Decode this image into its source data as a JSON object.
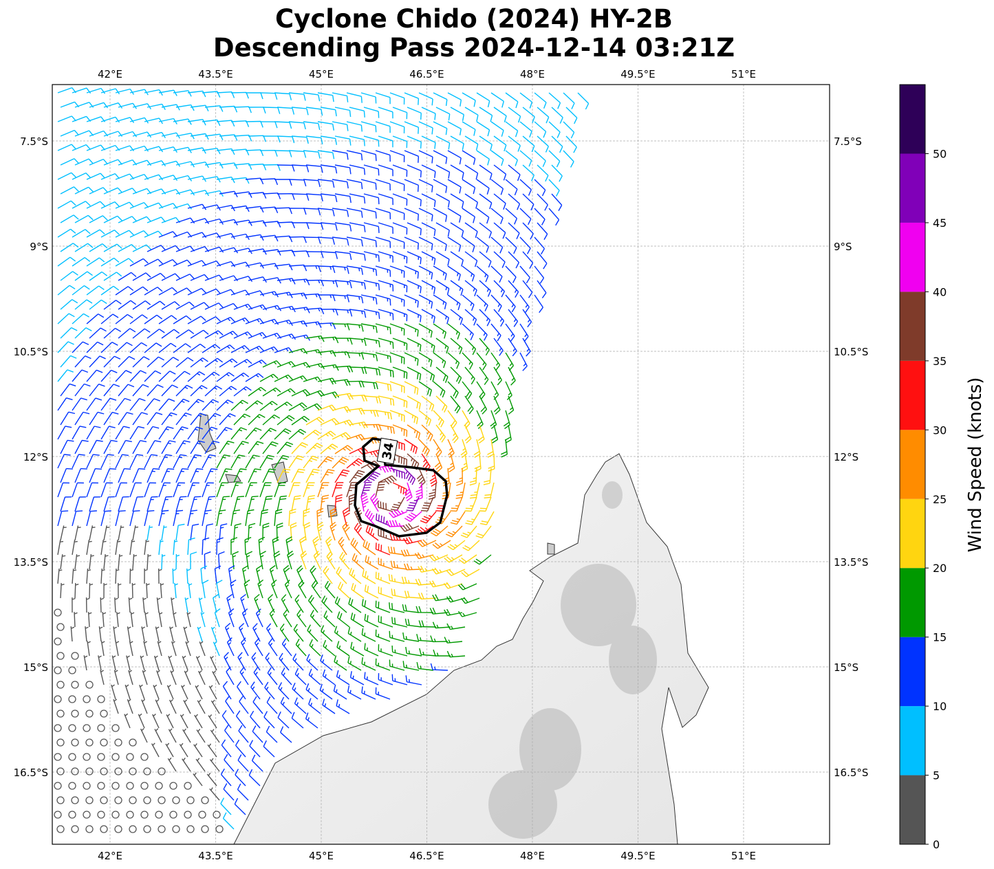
{
  "title": {
    "line1": "Cyclone Chido (2024) HY-2B",
    "line2": "Descending Pass 2024-12-14 03:21Z"
  },
  "lon_ticks": [
    "42°E",
    "43.5°E",
    "45°E",
    "46.5°E",
    "48°E",
    "49.5°E",
    "51°E"
  ],
  "lon_values": [
    42,
    43.5,
    45,
    46.5,
    48,
    49.5,
    51
  ],
  "lat_ticks": [
    "7.5°S",
    "9°S",
    "10.5°S",
    "12°S",
    "13.5°S",
    "15°S",
    "16.5°S"
  ],
  "lat_values": [
    7.5,
    9,
    10.5,
    12,
    13.5,
    15,
    16.5
  ],
  "colorbar": {
    "label": "Wind Speed (knots)",
    "ticks": [
      "0",
      "5",
      "10",
      "15",
      "20",
      "25",
      "30",
      "35",
      "40",
      "45",
      "50"
    ],
    "bounds": [
      0,
      5,
      10,
      15,
      20,
      25,
      30,
      35,
      40,
      45,
      50,
      55
    ],
    "colors": [
      "#555555",
      "#00bfff",
      "#0033ff",
      "#009900",
      "#ffd510",
      "#ff8c00",
      "#ff1010",
      "#7f3b2a",
      "#f000f0",
      "#8000b8",
      "#2e0058"
    ]
  },
  "contour_label": "34",
  "chart_data": {
    "type": "wind-barb map",
    "storm_center": {
      "lon": 46.0,
      "lat": -12.55
    },
    "max_wind_kt": 48,
    "contour_kt": 34,
    "extent": {
      "lon": [
        41.18,
        52.22
      ],
      "lat": [
        -17.5,
        -6.7
      ]
    }
  }
}
